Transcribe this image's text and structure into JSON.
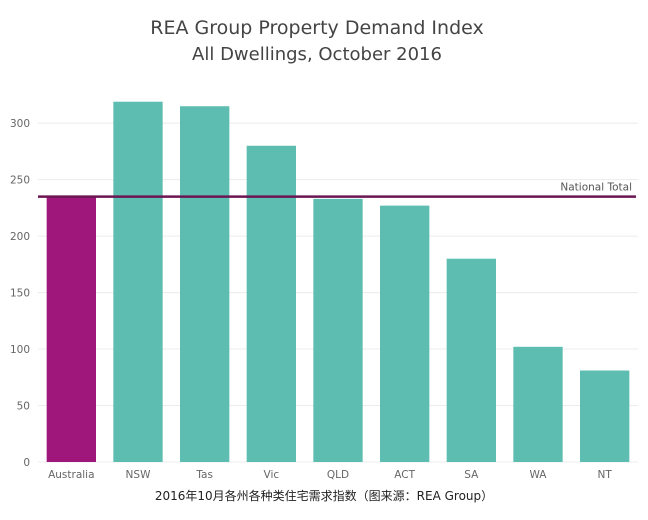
{
  "chart_data": {
    "type": "bar",
    "title": "REA Group Property Demand Index",
    "subtitle": "All Dwellings, October 2016",
    "categories": [
      "Australia",
      "NSW",
      "Tas",
      "Vic",
      "QLD",
      "ACT",
      "SA",
      "WA",
      "NT"
    ],
    "values": [
      235,
      319,
      315,
      280,
      233,
      227,
      180,
      102,
      81
    ],
    "bar_colors": [
      "#a0177c",
      "#5cbdb0",
      "#5cbdb0",
      "#5cbdb0",
      "#5cbdb0",
      "#5cbdb0",
      "#5cbdb0",
      "#5cbdb0",
      "#5cbdb0"
    ],
    "ylim": [
      0,
      340
    ],
    "yticks": [
      0,
      50,
      100,
      150,
      200,
      250,
      300
    ],
    "grid": true,
    "reference_line": {
      "label": "National Total",
      "value": 235,
      "color": "#6b1552"
    },
    "xlabel": "",
    "ylabel": ""
  },
  "caption": "2016年10月各州各种类住宅需求指数（图来源：REA Group）"
}
